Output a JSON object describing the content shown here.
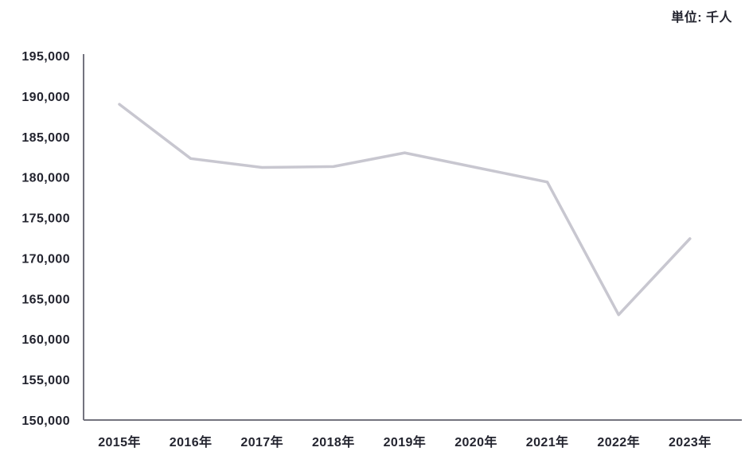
{
  "header": {
    "unit_label": "単位: 千人"
  },
  "chart_data": {
    "type": "line",
    "title": "",
    "xlabel": "",
    "ylabel": "",
    "unit_label": "単位: 千人",
    "categories": [
      "2015年",
      "2016年",
      "2017年",
      "2018年",
      "2019年",
      "2020年",
      "2021年",
      "2022年",
      "2023年"
    ],
    "values": [
      189000,
      182300,
      181200,
      181300,
      183000,
      181200,
      179400,
      163000,
      172400
    ],
    "ylim": [
      150000,
      195000
    ],
    "ytick_step": 5000,
    "ytick_labels": [
      "150,000",
      "155,000",
      "160,000",
      "165,000",
      "170,000",
      "175,000",
      "180,000",
      "185,000",
      "190,000",
      "195,000"
    ],
    "grid": false,
    "legend": false,
    "colors": {
      "line": "#c8c7d0",
      "axis": "#73737e",
      "text": "#23242f",
      "background": "#ffffff"
    }
  }
}
